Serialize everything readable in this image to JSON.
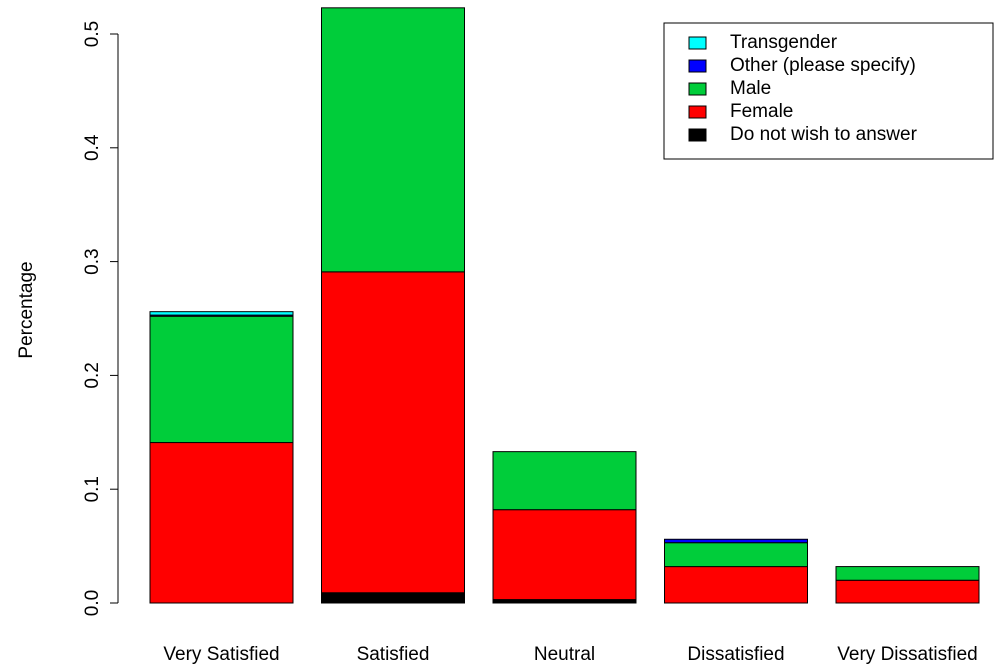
{
  "chart_data": {
    "type": "bar",
    "stacked": true,
    "title": "",
    "xlabel": "",
    "ylabel": "Percentage",
    "ylim": [
      0,
      0.52
    ],
    "yticks": [
      0.0,
      0.1,
      0.2,
      0.3,
      0.4,
      0.5
    ],
    "ytick_labels": [
      "0.0",
      "0.1",
      "0.2",
      "0.3",
      "0.4",
      "0.5"
    ],
    "grid": false,
    "legend_position": "top-right",
    "categories": [
      "Very Satisfied",
      "Satisfied",
      "Neutral",
      "Dissatisfied",
      "Very Dissatisfied"
    ],
    "series": [
      {
        "name": "Do not wish to answer",
        "color": "#000000",
        "values": [
          0.0,
          0.009,
          0.003,
          0.0,
          0.0
        ]
      },
      {
        "name": "Female",
        "color": "#ff0000",
        "values": [
          0.141,
          0.282,
          0.079,
          0.032,
          0.02
        ]
      },
      {
        "name": "Male",
        "color": "#00cd3a",
        "values": [
          0.111,
          0.232,
          0.051,
          0.021,
          0.012
        ]
      },
      {
        "name": "Other (please specify)",
        "color": "#0000ff",
        "values": [
          0.001,
          0.0,
          0.0,
          0.003,
          0.0
        ]
      },
      {
        "name": "Transgender",
        "color": "#00ffff",
        "values": [
          0.003,
          0.0,
          0.0,
          0.0,
          0.0
        ]
      }
    ],
    "legend_order": [
      "Transgender",
      "Other (please specify)",
      "Male",
      "Female",
      "Do not wish to answer"
    ]
  }
}
